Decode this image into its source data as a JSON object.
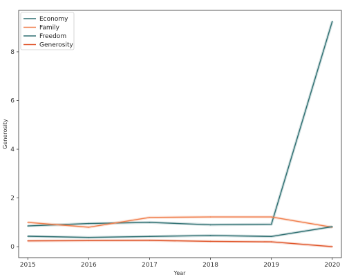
{
  "chart_data": {
    "type": "line",
    "title": "",
    "xlabel": "Year",
    "ylabel": "Generosity",
    "x": [
      2015,
      2016,
      2017,
      2018,
      2019,
      2020
    ],
    "xlim": [
      2014.85,
      2020.15
    ],
    "ylim": [
      -0.45,
      9.7
    ],
    "xticks": [
      "2015",
      "2016",
      "2017",
      "2018",
      "2019",
      "2020"
    ],
    "yticks": [
      "0",
      "2",
      "4",
      "6",
      "8"
    ],
    "grid": false,
    "legend_position": "top-left",
    "series": [
      {
        "name": "Economy",
        "color": "#2e6f71",
        "values": [
          0.85,
          0.95,
          1.0,
          0.9,
          0.92,
          9.25
        ]
      },
      {
        "name": "Family",
        "color": "#f07f4d",
        "values": [
          1.0,
          0.8,
          1.2,
          1.22,
          1.22,
          0.8
        ]
      },
      {
        "name": "Freedom",
        "color": "#2e6f71",
        "values": [
          0.43,
          0.38,
          0.42,
          0.46,
          0.42,
          0.82
        ]
      },
      {
        "name": "Generosity",
        "color": "#e0562b",
        "values": [
          0.24,
          0.25,
          0.26,
          0.22,
          0.2,
          0.0
        ]
      }
    ]
  }
}
